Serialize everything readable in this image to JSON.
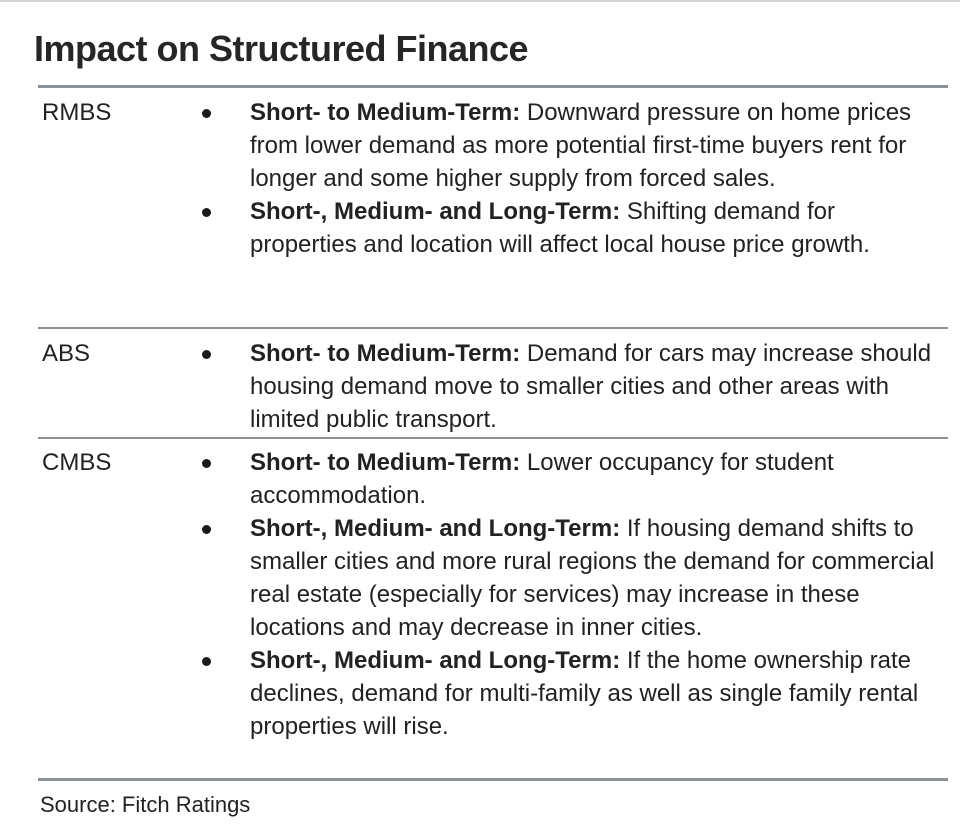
{
  "title": "Impact on Structured Finance",
  "rows": [
    {
      "label": "RMBS",
      "bullets": [
        {
          "term": "Short- to Medium-Term:",
          "text": " Downward pressure on home prices from lower demand as more potential first-time buyers rent for longer and some higher supply from forced sales."
        },
        {
          "term": "Short-, Medium- and Long-Term:",
          "text": " Shifting demand for properties and location will affect local house price growth."
        }
      ]
    },
    {
      "label": "ABS",
      "bullets": [
        {
          "term": "Short- to Medium-Term:",
          "text": " Demand for cars may increase should housing demand move to smaller cities and other areas with limited public transport."
        }
      ]
    },
    {
      "label": "CMBS",
      "bullets": [
        {
          "term": "Short- to Medium-Term:",
          "text": " Lower occupancy for student accommodation."
        },
        {
          "term": "Short-, Medium- and Long-Term:",
          "text": " If housing demand shifts to smaller cities and more rural regions the demand for commercial real estate (especially for services) may increase in these locations and may decrease in inner cities."
        },
        {
          "term": "Short-, Medium- and Long-Term:",
          "text": " If the home ownership rate declines, demand for multi-family as well as single family rental properties will rise."
        }
      ]
    }
  ],
  "source": "Source: Fitch Ratings"
}
